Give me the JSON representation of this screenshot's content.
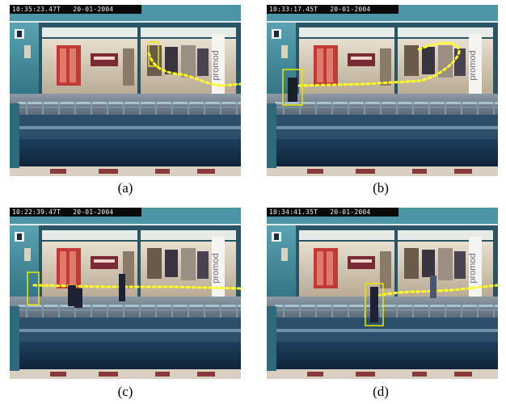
{
  "panels": [
    {
      "id": "a",
      "timestamp": "10:35:23.47T   20-01-2004",
      "caption": "(a)"
    },
    {
      "id": "b",
      "timestamp": "10:33:17.45T   20-01-2004",
      "caption": "(b)"
    },
    {
      "id": "c",
      "timestamp": "10:22:39.47T   20-01-2004",
      "caption": "(c)"
    },
    {
      "id": "d",
      "timestamp": "10:34:41.35T   20-01-2004",
      "caption": "(d)"
    }
  ],
  "store_sign": "promod",
  "colors": {
    "track": "#ffff22",
    "box": "#e8e800",
    "stamp_bg": "#0a0a0a"
  }
}
